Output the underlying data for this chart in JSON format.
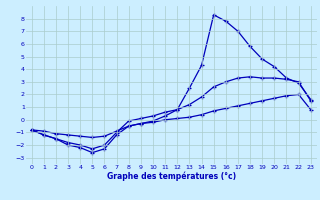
{
  "xlabel": "Graphe des températures (°c)",
  "background_color": "#cceeff",
  "grid_color": "#aacccc",
  "line_color": "#0000bb",
  "hours": [
    0,
    1,
    2,
    3,
    4,
    5,
    6,
    7,
    8,
    9,
    10,
    11,
    12,
    13,
    14,
    15,
    16,
    17,
    18,
    19,
    20,
    21,
    22,
    23
  ],
  "series1": [
    -0.8,
    -1.2,
    -1.5,
    -2.0,
    -2.2,
    -2.6,
    -2.3,
    -1.2,
    -0.5,
    -0.3,
    -0.1,
    0.3,
    0.8,
    2.5,
    4.3,
    8.3,
    7.8,
    7.0,
    5.8,
    4.8,
    4.2,
    3.3,
    2.9,
    1.6
  ],
  "series2": [
    -0.8,
    -1.2,
    -1.5,
    -1.8,
    -2.0,
    -2.3,
    -2.0,
    -1.0,
    -0.1,
    0.1,
    0.3,
    0.6,
    0.8,
    1.2,
    1.8,
    2.6,
    3.0,
    3.3,
    3.4,
    3.3,
    3.3,
    3.2,
    3.0,
    1.5
  ],
  "series3": [
    -0.8,
    -0.9,
    -1.1,
    -1.2,
    -1.3,
    -1.4,
    -1.3,
    -0.9,
    -0.5,
    -0.3,
    -0.2,
    0.0,
    0.1,
    0.2,
    0.4,
    0.7,
    0.9,
    1.1,
    1.3,
    1.5,
    1.7,
    1.9,
    2.0,
    0.8
  ],
  "ylim": [
    -3.5,
    9.0
  ],
  "yticks": [
    -3,
    -2,
    -1,
    0,
    1,
    2,
    3,
    4,
    5,
    6,
    7,
    8
  ],
  "xticks": [
    0,
    1,
    2,
    3,
    4,
    5,
    6,
    7,
    8,
    9,
    10,
    11,
    12,
    13,
    14,
    15,
    16,
    17,
    18,
    19,
    20,
    21,
    22,
    23
  ]
}
